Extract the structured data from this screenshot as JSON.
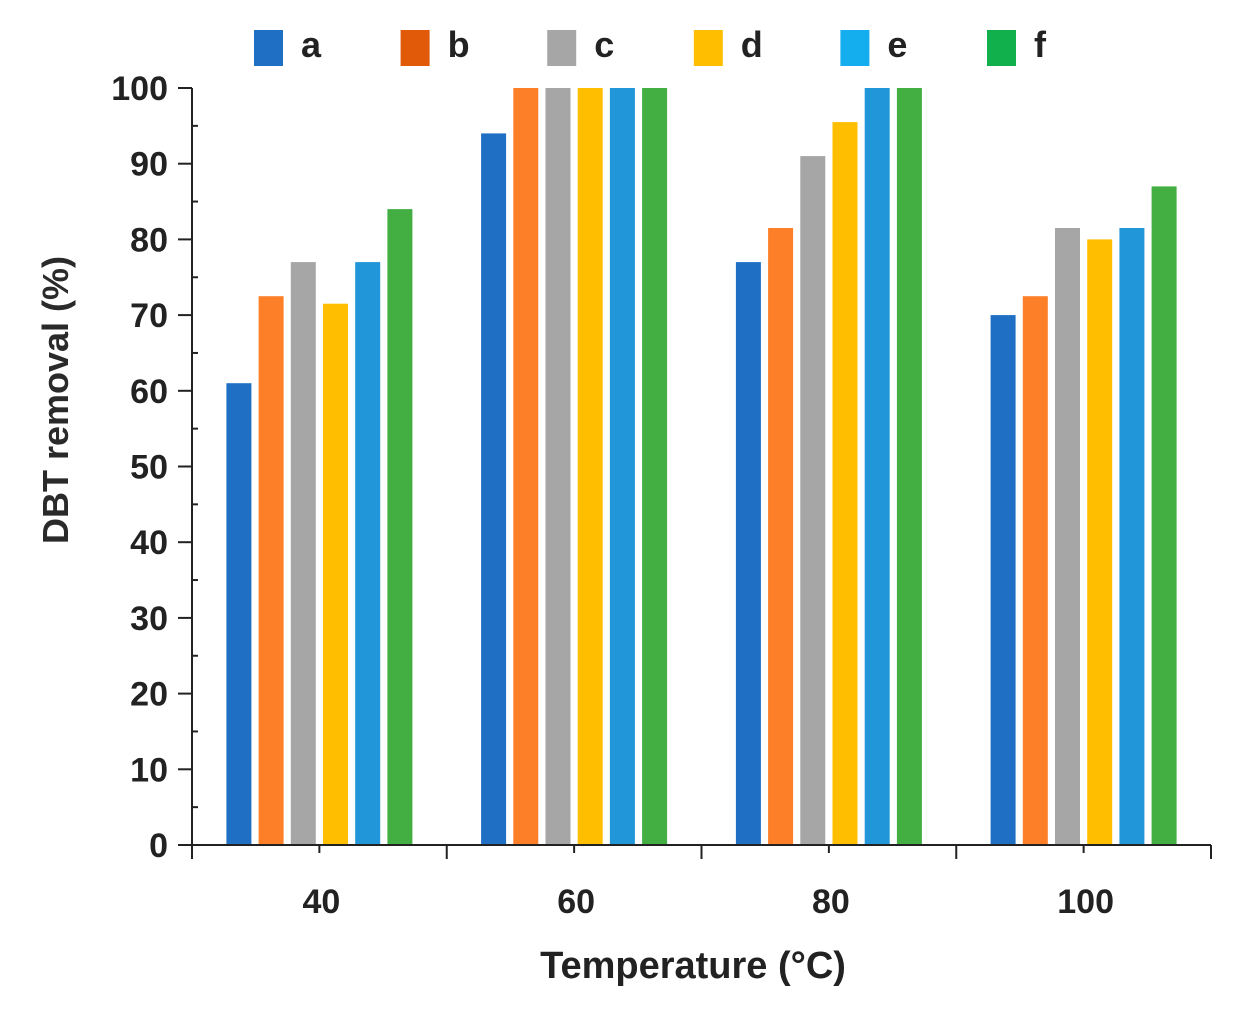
{
  "chart_data": {
    "type": "bar",
    "title": "",
    "xlabel": "Temperature (°C)",
    "ylabel": "DBT removal (%)",
    "categories": [
      "40",
      "60",
      "80",
      "100"
    ],
    "ylim": [
      0,
      100
    ],
    "yticks": [
      "0",
      "10",
      "20",
      "30",
      "40",
      "50",
      "60",
      "70",
      "80",
      "90",
      "100"
    ],
    "grid": false,
    "legend_position": "top",
    "series": [
      {
        "name": "a",
        "color": "#1f6fc4",
        "legend_color": "#1f6fc4",
        "values": [
          61,
          94,
          77,
          70
        ]
      },
      {
        "name": "b",
        "color": "#fd7f27",
        "legend_color": "#e05a0a",
        "values": [
          72.5,
          100,
          81.5,
          72.5
        ]
      },
      {
        "name": "c",
        "color": "#a6a6a6",
        "legend_color": "#a6a6a6",
        "values": [
          77,
          100,
          91,
          81.5
        ]
      },
      {
        "name": "d",
        "color": "#ffbf00",
        "legend_color": "#ffbf00",
        "values": [
          71.5,
          100,
          95.5,
          80
        ]
      },
      {
        "name": "e",
        "color": "#2196d9",
        "legend_color": "#14aeef",
        "values": [
          77,
          100,
          100,
          81.5
        ]
      },
      {
        "name": "f",
        "color": "#43af43",
        "legend_color": "#12b04c",
        "values": [
          84,
          100,
          100,
          87
        ]
      }
    ]
  }
}
